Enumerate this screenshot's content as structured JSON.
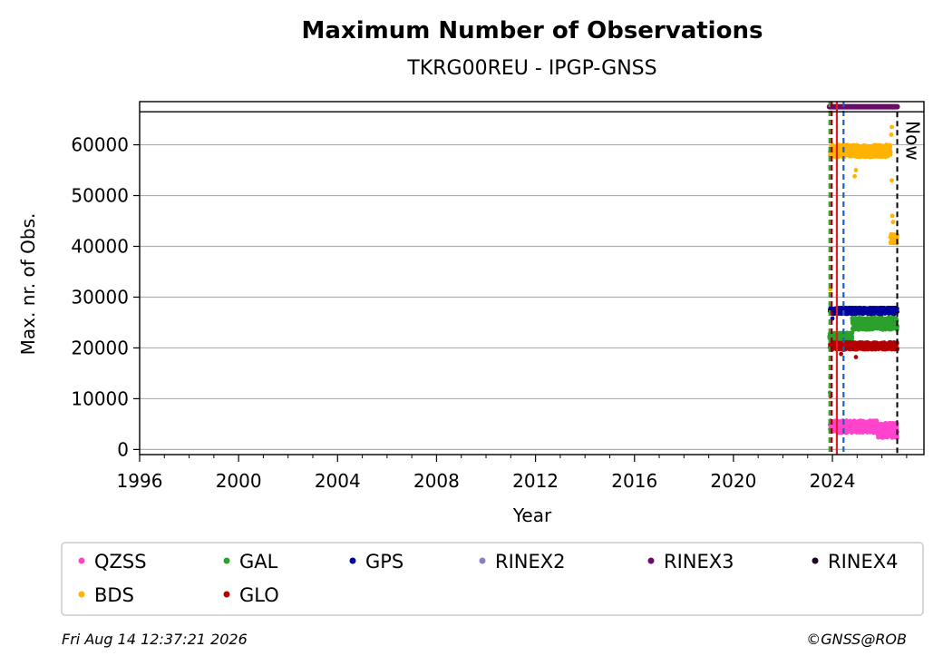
{
  "chart_data": {
    "type": "scatter",
    "title": "Maximum Number of Observations",
    "subtitle": "TKRG00REU - IPGP-GNSS",
    "xlabel": "Year",
    "ylabel": "Max. nr. of Obs.",
    "xlim": [
      1996,
      2027.7
    ],
    "ylim": [
      -1000,
      68500
    ],
    "x_ticks": [
      1996,
      2000,
      2004,
      2008,
      2012,
      2016,
      2020,
      2024
    ],
    "y_ticks": [
      0,
      10000,
      20000,
      30000,
      40000,
      50000,
      60000
    ],
    "grid": "horizontal",
    "limit_line": 66500,
    "now_label": "Now",
    "now_x": 2026.62,
    "vertical_markers": [
      {
        "x": 2023.88,
        "color": "#2ca02c",
        "style": "dashed"
      },
      {
        "x": 2023.97,
        "color": "#8b0000",
        "style": "dashed"
      },
      {
        "x": 2024.18,
        "color": "#e41a1c",
        "style": "solid"
      },
      {
        "x": 2024.45,
        "color": "#1f5fbf",
        "style": "dashed"
      }
    ],
    "series": [
      {
        "name": "QZSS",
        "color": "#ff44cc",
        "x_range": [
          2023.9,
          2026.62
        ],
        "segments": [
          [
            2023.9,
            2025.8,
            4500,
            1200
          ],
          [
            2025.8,
            2026.62,
            3800,
            1500
          ]
        ]
      },
      {
        "name": "BDS",
        "color": "#ffb300",
        "x_range": [
          2023.9,
          2026.62
        ],
        "segments": [
          [
            2023.9,
            2026.35,
            58800,
            1200
          ],
          [
            2026.35,
            2026.62,
            41500,
            900
          ]
        ],
        "outliers": [
          [
            2023.92,
            31500
          ],
          [
            2024.9,
            53800
          ],
          [
            2024.95,
            55000
          ],
          [
            2026.4,
            53000
          ],
          [
            2026.42,
            46000
          ],
          [
            2026.45,
            44800
          ],
          [
            2026.38,
            62000
          ],
          [
            2026.4,
            63500
          ]
        ]
      },
      {
        "name": "GAL",
        "color": "#2ca02c",
        "x_range": [
          2023.88,
          2026.62
        ],
        "segments": [
          [
            2023.88,
            2024.8,
            22300,
            700
          ],
          [
            2024.8,
            2026.62,
            24800,
            1200
          ]
        ],
        "outliers": [
          [
            2023.9,
            11200
          ]
        ]
      },
      {
        "name": "GLO",
        "color": "#b30000",
        "x_range": [
          2023.9,
          2026.62
        ],
        "segments": [
          [
            2023.9,
            2026.62,
            20400,
            700
          ]
        ],
        "outliers": [
          [
            2023.92,
            10500
          ],
          [
            2024.95,
            18200
          ],
          [
            2024.35,
            18800
          ]
        ]
      },
      {
        "name": "GPS",
        "color": "#00009c",
        "x_range": [
          2023.9,
          2026.62
        ],
        "segments": [
          [
            2023.9,
            2026.62,
            27300,
            600
          ]
        ],
        "outliers": [
          [
            2023.92,
            14200
          ],
          [
            2024.0,
            25800
          ]
        ]
      },
      {
        "name": "RINEX2",
        "color": "#8c7fc0",
        "x_range": [],
        "segments": []
      },
      {
        "name": "RINEX3",
        "color": "#6b0a6b",
        "x_range": [
          2023.88,
          2026.62
        ],
        "segments": [
          [
            2023.88,
            2026.62,
            67500,
            0
          ]
        ]
      },
      {
        "name": "RINEX4",
        "color": "#1a0021",
        "x_range": [],
        "segments": []
      }
    ]
  },
  "legend": {
    "items": [
      {
        "label": "QZSS",
        "color": "#ff44cc"
      },
      {
        "label": "GAL",
        "color": "#2ca02c"
      },
      {
        "label": "GPS",
        "color": "#00009c"
      },
      {
        "label": "RINEX2",
        "color": "#8c7fc0"
      },
      {
        "label": "RINEX3",
        "color": "#6b0a6b"
      },
      {
        "label": "RINEX4",
        "color": "#1a0021"
      },
      {
        "label": "BDS",
        "color": "#ffb300"
      },
      {
        "label": "GLO",
        "color": "#b30000"
      }
    ]
  },
  "footer": {
    "timestamp": "Fri Aug 14 12:37:21 2026",
    "copyright": "©GNSS@ROB"
  }
}
